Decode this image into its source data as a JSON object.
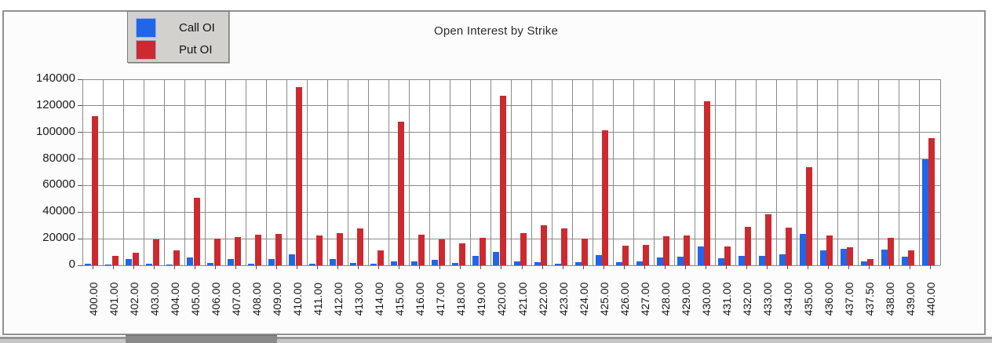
{
  "chart_data": {
    "type": "bar",
    "title": "Open Interest by Strike",
    "xlabel": "",
    "ylabel": "",
    "ylim": [
      0,
      140000
    ],
    "ytick_interval": 20000,
    "y_ticks": [
      0,
      20000,
      40000,
      60000,
      80000,
      100000,
      120000,
      140000
    ],
    "grid": true,
    "legend_position": "top-left",
    "categories": [
      "400.00",
      "401.00",
      "402.00",
      "403.00",
      "404.00",
      "405.00",
      "406.00",
      "407.00",
      "408.00",
      "409.00",
      "410.00",
      "411.00",
      "412.00",
      "413.00",
      "414.00",
      "415.00",
      "416.00",
      "417.00",
      "418.00",
      "419.00",
      "420.00",
      "421.00",
      "422.00",
      "423.00",
      "424.00",
      "425.00",
      "426.00",
      "427.00",
      "428.00",
      "429.00",
      "430.00",
      "431.00",
      "432.00",
      "433.00",
      "434.00",
      "435.00",
      "436.00",
      "437.00",
      "437.50",
      "438.00",
      "439.00",
      "440.00"
    ],
    "series": [
      {
        "name": "Call OI",
        "color": "#2166e8",
        "values": [
          1000,
          500,
          5000,
          1000,
          800,
          6000,
          1500,
          4500,
          1200,
          5000,
          8000,
          1000,
          5000,
          2000,
          1000,
          2800,
          3000,
          4000,
          1500,
          7000,
          10000,
          2800,
          2500,
          1200,
          2200,
          7500,
          2500,
          2800,
          6000,
          6500,
          14000,
          5500,
          7000,
          7000,
          8500,
          23500,
          11000,
          12500,
          3000,
          12000,
          6500,
          80000
        ]
      },
      {
        "name": "Put OI",
        "color": "#cd2930",
        "values": [
          112000,
          7000,
          9500,
          19500,
          11500,
          51000,
          20000,
          21500,
          23000,
          23500,
          134000,
          22500,
          24500,
          27500,
          11500,
          108000,
          23000,
          19500,
          16500,
          20500,
          127500,
          24000,
          30000,
          27500,
          20000,
          101500,
          15000,
          15500,
          22000,
          22500,
          123500,
          14000,
          29000,
          38500,
          28500,
          74000,
          22500,
          13500,
          4500,
          20500,
          11000,
          95500
        ]
      }
    ]
  },
  "colors": {
    "call": "#2166e8",
    "put": "#cd2930",
    "grid": "#8a8a8a",
    "frame": "#8f8f8f",
    "legend_bg": "#d2d1cd"
  }
}
